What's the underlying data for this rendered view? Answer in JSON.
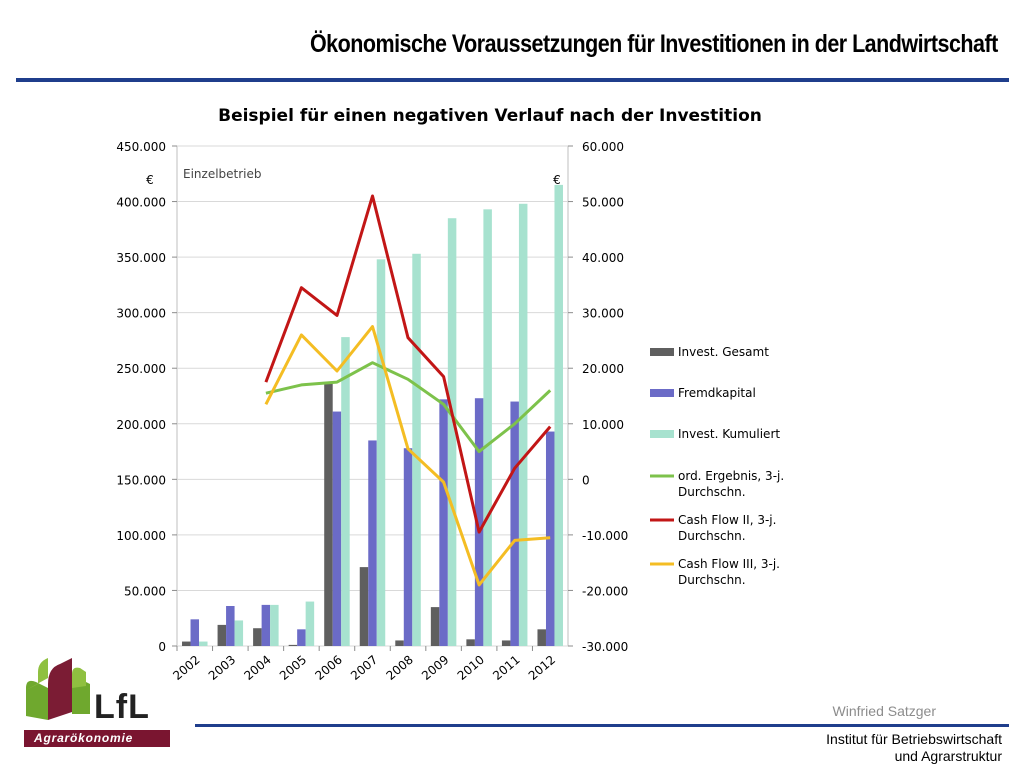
{
  "header": {
    "title": "Ökonomische Voraussetzungen für Investitionen in der Landwirtschaft"
  },
  "chart_data": {
    "type": "bar",
    "title": "Beispiel für einen negativen Verlauf nach der Investition",
    "annotation": "Einzelbetrieb",
    "y_unit_left": "€",
    "y_unit_right": "€",
    "categories": [
      "2002",
      "2003",
      "2004",
      "2005",
      "2006",
      "2007",
      "2008",
      "2009",
      "2010",
      "2011",
      "2012"
    ],
    "y_left": {
      "min": 0,
      "max": 450000,
      "ticks": [
        "0",
        "50.000",
        "100.000",
        "150.000",
        "200.000",
        "250.000",
        "300.000",
        "350.000",
        "400.000",
        "450.000"
      ]
    },
    "y_right": {
      "min": -30000,
      "max": 60000,
      "ticks": [
        "-30.000",
        "-20.000",
        "-10.000",
        "0",
        "10.000",
        "20.000",
        "30.000",
        "40.000",
        "50.000",
        "60.000"
      ]
    },
    "grid": true,
    "legend_position": "right",
    "bar_series": [
      {
        "name": "Invest. Gesamt",
        "color": "#5f5f5f",
        "values": [
          4000,
          19000,
          16000,
          1000,
          237000,
          71000,
          5000,
          35000,
          6000,
          5000,
          15000
        ]
      },
      {
        "name": "Fremdkapital",
        "color": "#6b6bc7",
        "values": [
          24000,
          36000,
          37000,
          15000,
          211000,
          185000,
          178000,
          222000,
          223000,
          220000,
          193000
        ]
      },
      {
        "name": "Invest. Kumuliert",
        "color": "#a7e2cf",
        "values": [
          4000,
          23000,
          37000,
          40000,
          278000,
          348000,
          353000,
          385000,
          393000,
          398000,
          415000
        ]
      }
    ],
    "line_series": [
      {
        "name": "ord. Ergebnis, 3-j. Durchschn.",
        "color": "#7dc24b",
        "axis": "right",
        "values": [
          null,
          null,
          15500,
          17000,
          17500,
          21000,
          18000,
          13500,
          5000,
          10000,
          16000
        ]
      },
      {
        "name": "Cash Flow II, 3-j. Durchschn.",
        "color": "#c21616",
        "axis": "right",
        "values": [
          null,
          null,
          17500,
          34500,
          29500,
          51000,
          25500,
          18500,
          -9500,
          2000,
          9500
        ]
      },
      {
        "name": "Cash Flow III, 3-j. Durchschn.",
        "color": "#f4bd23",
        "axis": "right",
        "values": [
          null,
          null,
          13500,
          26000,
          19500,
          27500,
          5500,
          -500,
          -19000,
          -11000,
          -10500
        ]
      }
    ]
  },
  "footer": {
    "author": "Winfried Satzger",
    "institute_line1": "Institut für Betriebswirtschaft",
    "institute_line2": "und Agrarstruktur",
    "logo_text": "LfL",
    "logo_sub": "Agrarökonomie"
  }
}
